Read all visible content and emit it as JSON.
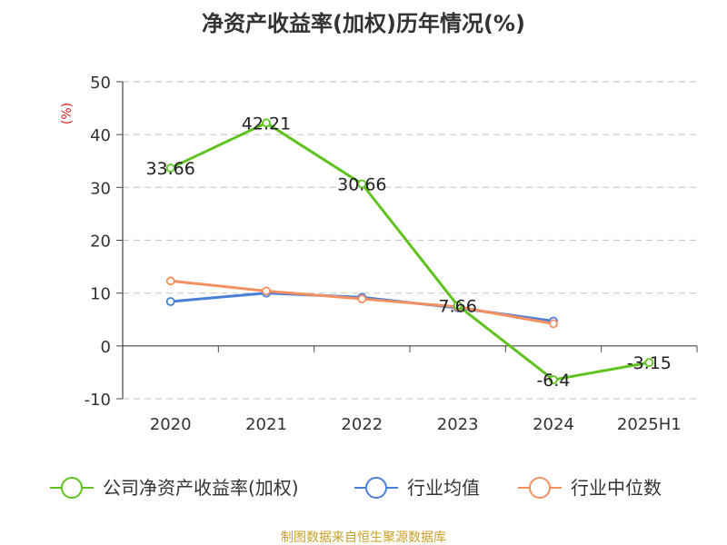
{
  "chart_data": {
    "type": "line",
    "title": "净资产收益率(加权)历年情况(%)",
    "unit_label": "(%)",
    "categories": [
      "2020",
      "2021",
      "2022",
      "2023",
      "2024",
      "2025H1"
    ],
    "ylim": [
      -10,
      50
    ],
    "yticks": [
      "50",
      "40",
      "30",
      "20",
      "10",
      "0",
      "-10"
    ],
    "ytick_values": [
      50,
      40,
      30,
      20,
      10,
      0,
      -10
    ],
    "grid": true,
    "legend_position": "bottom",
    "series": [
      {
        "name": "公司净资产收益率(加权)",
        "color": "#5ec21f",
        "values": [
          33.66,
          42.21,
          30.66,
          7.66,
          -6.4,
          -3.15
        ],
        "labels": [
          "33.66",
          "42.21",
          "30.66",
          "7.66",
          "-6.4",
          "-3.15"
        ]
      },
      {
        "name": "行业均值",
        "color": "#4a7fd8",
        "values": [
          8.4,
          10.0,
          9.2,
          7.2,
          4.7,
          null
        ]
      },
      {
        "name": "行业中位数",
        "color": "#f59060",
        "values": [
          12.3,
          10.4,
          8.9,
          7.4,
          4.2,
          null
        ]
      }
    ]
  },
  "source": "制图数据来自恒生聚源数据库"
}
